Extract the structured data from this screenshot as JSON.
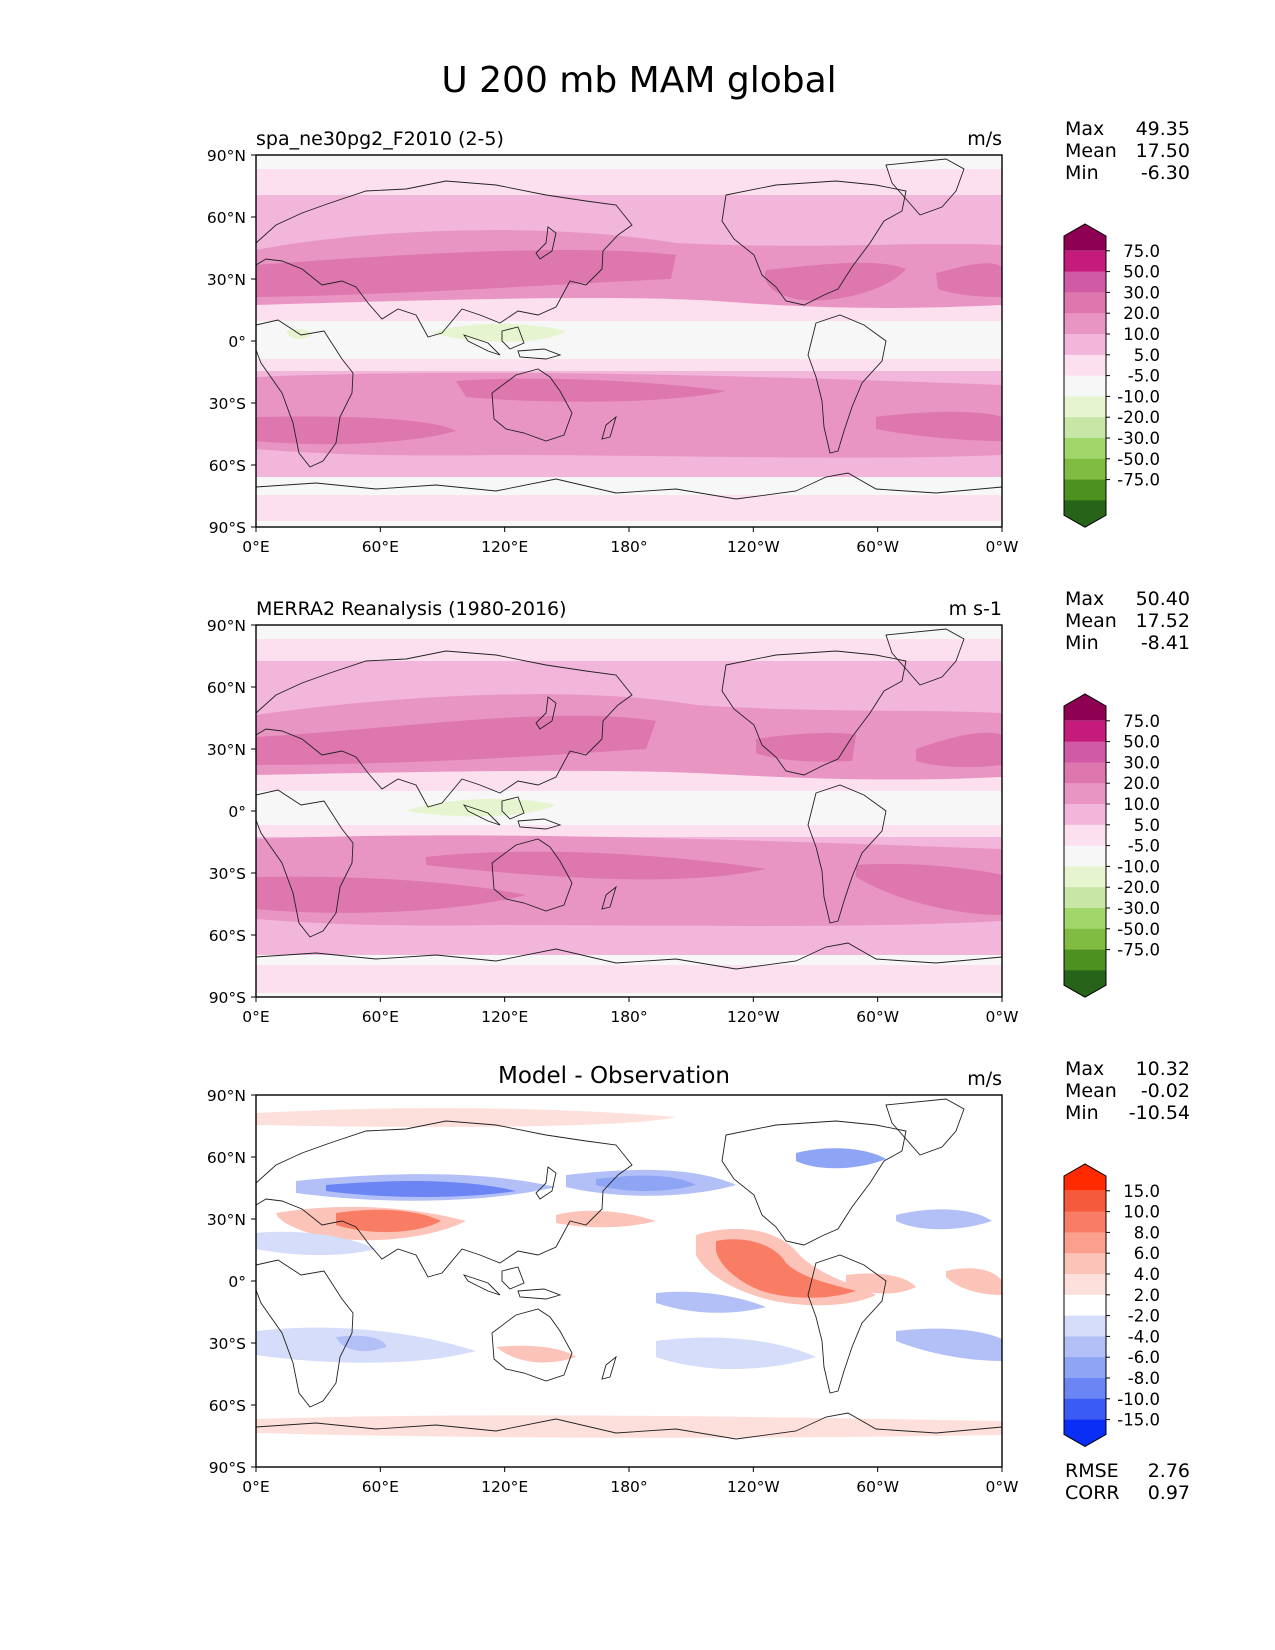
{
  "figure": {
    "title": "U 200 mb MAM global"
  },
  "axes": {
    "lat_labels": [
      "90°N",
      "60°N",
      "30°N",
      "0°",
      "30°S",
      "60°S",
      "90°S"
    ],
    "lon_labels": [
      "0°E",
      "60°E",
      "120°E",
      "180°",
      "120°W",
      "60°W",
      "0°W"
    ]
  },
  "colors": {
    "pink_levels": [
      "#276419",
      "#4d9221",
      "#7fbc41",
      "#a1d76a",
      "#c8e6a5",
      "#e6f5d0",
      "#f7f7f7",
      "#fde0ef",
      "#f1b6da",
      "#e995c4",
      "#de77ae",
      "#d05aa4",
      "#c51b7d",
      "#8e0152"
    ],
    "diff_levels": [
      "#0a2ef5",
      "#3a5cf5",
      "#6b85f5",
      "#8ea4f5",
      "#b2c0f7",
      "#d6ddfa",
      "#ffffff",
      "#fde0dc",
      "#fcc3b9",
      "#fba08e",
      "#f97d65",
      "#f65a3c",
      "#ff2a00"
    ]
  },
  "panels": [
    {
      "id": "test",
      "left_title": "spa_ne30pg2_F2010 (2-5)",
      "center_title": "",
      "units": "m/s",
      "stats": {
        "max_label": "Max",
        "max": "49.35",
        "mean_label": "Mean",
        "mean": "17.50",
        "min_label": "Min",
        "min": "-6.30"
      },
      "colorbar_labels": [
        "75.0",
        "50.0",
        "30.0",
        "20.0",
        "10.0",
        "5.0",
        "-5.0",
        "-10.0",
        "-20.0",
        "-30.0",
        "-50.0",
        "-75.0"
      ]
    },
    {
      "id": "reference",
      "left_title": "MERRA2 Reanalysis (1980-2016)",
      "center_title": "",
      "units": "m s-1",
      "stats": {
        "max_label": "Max",
        "max": "50.40",
        "mean_label": "Mean",
        "mean": "17.52",
        "min_label": "Min",
        "min": "-8.41"
      },
      "colorbar_labels": [
        "75.0",
        "50.0",
        "30.0",
        "20.0",
        "10.0",
        "5.0",
        "-5.0",
        "-10.0",
        "-20.0",
        "-30.0",
        "-50.0",
        "-75.0"
      ]
    },
    {
      "id": "difference",
      "left_title": "",
      "center_title": "Model - Observation",
      "units": "m/s",
      "stats": {
        "max_label": "Max",
        "max": "10.32",
        "mean_label": "Mean",
        "mean": "-0.02",
        "min_label": "Min",
        "min": "-10.54"
      },
      "colorbar_labels": [
        "15.0",
        "10.0",
        "8.0",
        "6.0",
        "4.0",
        "2.0",
        "-2.0",
        "-4.0",
        "-6.0",
        "-8.0",
        "-10.0",
        "-15.0"
      ],
      "metrics": {
        "rmse_label": "RMSE",
        "rmse": "2.76",
        "corr_label": "CORR",
        "corr": "0.97"
      }
    }
  ]
}
